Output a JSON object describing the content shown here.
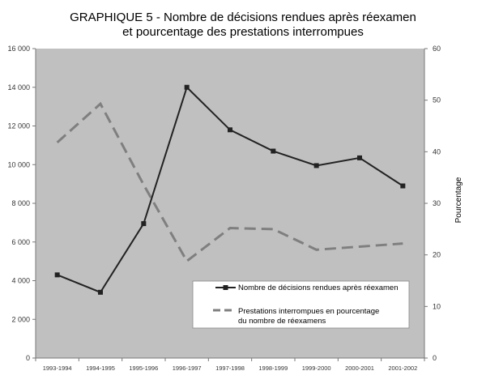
{
  "chart_data": {
    "type": "line",
    "title_lines": [
      "GRAPHIQUE 5 - Nombre de décisions rendues après réexamen",
      "et pourcentage des prestations interrompues"
    ],
    "categories": [
      "1993-1994",
      "1994-1995",
      "1995-1996",
      "1996-1997",
      "1997-1998",
      "1998-1999",
      "1999-2000",
      "2000-2001",
      "2001-2002"
    ],
    "left_axis": {
      "range": [
        0,
        16000
      ],
      "ticks": [
        0,
        2000,
        4000,
        6000,
        8000,
        10000,
        12000,
        14000,
        16000
      ],
      "tick_labels": [
        "0",
        "2 000",
        "4 000",
        "6 000",
        "8 000",
        "10 000",
        "12 000",
        "14 000",
        "16 000"
      ]
    },
    "right_axis": {
      "label": "Pourcentage",
      "range": [
        0,
        60
      ],
      "ticks": [
        0,
        10,
        20,
        30,
        40,
        50,
        60
      ],
      "tick_labels": [
        "0",
        "10",
        "20",
        "30",
        "40",
        "50",
        "60"
      ]
    },
    "series": [
      {
        "name": "Nombre de décisions rendues après réexamen",
        "axis": "left",
        "style": "solid-markers",
        "color": "#222222",
        "values": [
          4300,
          3400,
          6950,
          14000,
          11800,
          10700,
          9950,
          10350,
          8900
        ]
      },
      {
        "name_lines": [
          "Prestations interrompues en pourcentage",
          "du nombre de réexamens"
        ],
        "axis": "right",
        "style": "dashed",
        "color": "#7f7f7f",
        "values": [
          41.8,
          49.3,
          33.6,
          18.8,
          25.2,
          25.0,
          21.0,
          21.6,
          22.2
        ]
      }
    ],
    "plot_background": "#c0c0c0",
    "grid": false,
    "legend_position": "lower-right"
  }
}
